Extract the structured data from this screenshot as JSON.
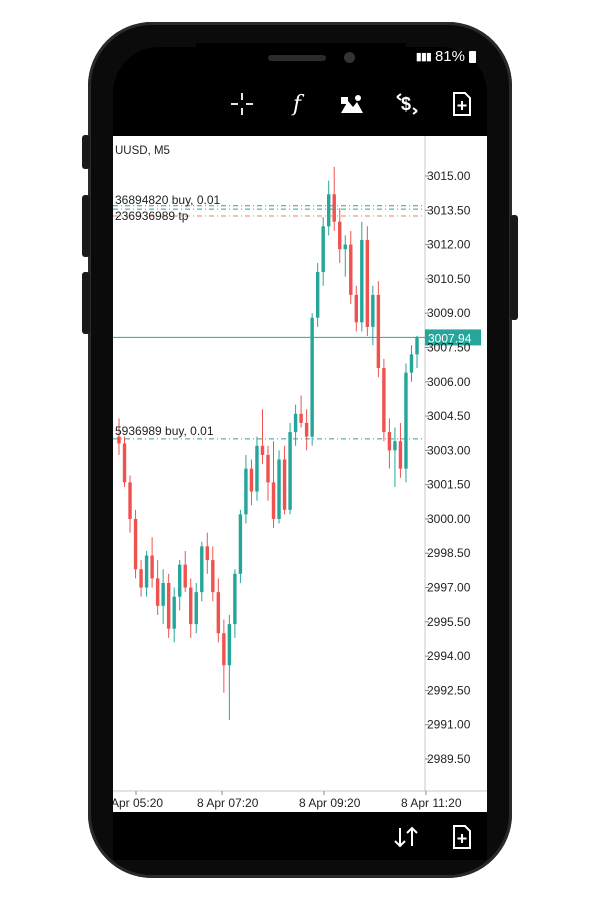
{
  "status_bar": {
    "battery": "81%"
  },
  "toolbar": {
    "icons": [
      "crosshair-icon",
      "function-icon",
      "objects-icon",
      "trade-icon",
      "new-order-icon"
    ],
    "function_glyph": "f"
  },
  "chart": {
    "symbol_label": "UUSD, M5",
    "current_price": "3007.94",
    "colors": {
      "bull": "#26a69a",
      "bear": "#ef5350",
      "price_line": "#26a69a",
      "order_line": "#26a69a",
      "tp_line": "#e08a50"
    },
    "order_labels": [
      {
        "text": "36894820 buy, 0.01"
      },
      {
        "text": "236936989 tp"
      },
      {
        "text": "5936989 buy, 0.01"
      }
    ]
  },
  "chart_data": {
    "type": "candlestick",
    "y_ticks": [
      "3015.00",
      "3013.50",
      "3012.00",
      "3010.50",
      "3009.00",
      "3007.50",
      "3006.00",
      "3004.50",
      "3003.00",
      "3001.50",
      "3000.00",
      "2998.50",
      "2997.00",
      "2995.50",
      "2994.00",
      "2992.50",
      "2991.00",
      "2989.50"
    ],
    "x_ticks": [
      "Apr 05:20",
      "8 Apr 07:20",
      "8 Apr 09:20",
      "8 Apr 11:20"
    ],
    "ylim": [
      2989.0,
      3015.5
    ],
    "current_price": 3007.94,
    "order_levels": {
      "buy_1": 3013.55,
      "tp": 3013.25,
      "buy_2": 3003.5
    },
    "candles": [
      [
        3003.6,
        3004.4,
        3002.8,
        3003.3
      ],
      [
        3003.3,
        3003.6,
        3001.4,
        3001.6
      ],
      [
        3001.6,
        3001.9,
        2999.4,
        3000.0
      ],
      [
        3000.0,
        3000.4,
        2997.4,
        2997.8
      ],
      [
        2997.8,
        2998.2,
        2996.6,
        2997.0
      ],
      [
        2997.0,
        2998.6,
        2996.6,
        2998.4
      ],
      [
        2998.4,
        2999.2,
        2997.0,
        2997.4
      ],
      [
        2997.4,
        2998.2,
        2995.8,
        2996.2
      ],
      [
        2996.2,
        2997.8,
        2995.4,
        2997.2
      ],
      [
        2997.2,
        2997.6,
        2994.8,
        2995.2
      ],
      [
        2995.2,
        2997.0,
        2994.6,
        2996.6
      ],
      [
        2996.6,
        2998.2,
        2996.0,
        2998.0
      ],
      [
        2998.0,
        2998.6,
        2996.8,
        2997.0
      ],
      [
        2997.0,
        2997.4,
        2994.8,
        2995.4
      ],
      [
        2995.4,
        2997.2,
        2995.0,
        2996.8
      ],
      [
        2996.8,
        2999.0,
        2996.4,
        2998.8
      ],
      [
        2998.8,
        2999.4,
        2997.6,
        2998.2
      ],
      [
        2998.2,
        2998.8,
        2996.4,
        2996.8
      ],
      [
        2996.8,
        2997.4,
        2994.6,
        2995.0
      ],
      [
        2995.0,
        2995.6,
        2992.4,
        2993.6
      ],
      [
        2993.6,
        2995.8,
        2991.2,
        2995.4
      ],
      [
        2995.4,
        2997.8,
        2994.8,
        2997.6
      ],
      [
        2997.6,
        3000.4,
        2997.2,
        3000.2
      ],
      [
        3000.2,
        3002.8,
        2999.8,
        3002.2
      ],
      [
        3002.2,
        3002.6,
        3000.6,
        3001.2
      ],
      [
        3001.2,
        3003.6,
        3000.8,
        3003.2
      ],
      [
        3003.2,
        3004.8,
        3002.4,
        3002.8
      ],
      [
        3002.8,
        3003.2,
        3000.8,
        3001.6
      ],
      [
        3001.6,
        3003.4,
        2999.6,
        3000.0
      ],
      [
        3000.0,
        3003.0,
        2999.8,
        3002.6
      ],
      [
        3002.6,
        3003.2,
        3000.2,
        3000.4
      ],
      [
        3000.4,
        3004.2,
        3000.2,
        3003.8
      ],
      [
        3003.8,
        3005.0,
        3003.2,
        3004.6
      ],
      [
        3004.6,
        3005.4,
        3004.0,
        3004.2
      ],
      [
        3004.2,
        3004.8,
        3003.0,
        3003.6
      ],
      [
        3003.6,
        3009.0,
        3003.2,
        3008.8
      ],
      [
        3008.8,
        3011.2,
        3008.4,
        3010.8
      ],
      [
        3010.8,
        3013.2,
        3010.2,
        3012.8
      ],
      [
        3012.8,
        3014.8,
        3012.4,
        3014.2
      ],
      [
        3014.2,
        3015.4,
        3012.6,
        3013.0
      ],
      [
        3013.0,
        3013.6,
        3011.2,
        3011.8
      ],
      [
        3011.8,
        3012.4,
        3010.6,
        3012.0
      ],
      [
        3012.0,
        3012.6,
        3009.4,
        3009.8
      ],
      [
        3009.8,
        3010.2,
        3008.2,
        3008.6
      ],
      [
        3008.6,
        3013.0,
        3008.2,
        3012.2
      ],
      [
        3012.2,
        3012.8,
        3008.0,
        3008.4
      ],
      [
        3008.4,
        3010.2,
        3007.6,
        3009.8
      ],
      [
        3009.8,
        3010.4,
        3006.2,
        3006.6
      ],
      [
        3006.6,
        3007.0,
        3003.4,
        3003.8
      ],
      [
        3003.8,
        3004.4,
        3002.2,
        3003.0
      ],
      [
        3003.0,
        3004.0,
        3001.4,
        3003.4
      ],
      [
        3003.4,
        3004.2,
        3001.8,
        3002.2
      ],
      [
        3002.2,
        3006.8,
        3001.6,
        3006.4
      ],
      [
        3006.4,
        3007.6,
        3006.0,
        3007.2
      ],
      [
        3007.2,
        3008.0,
        3006.6,
        3007.94
      ]
    ]
  },
  "bottom_bar": {
    "icons": [
      "sort-icon",
      "new-order-icon"
    ]
  }
}
